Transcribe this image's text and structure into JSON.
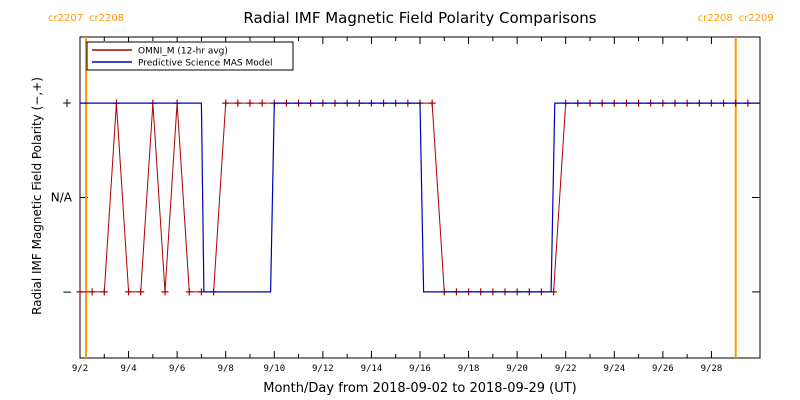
{
  "chart_data": {
    "type": "line",
    "title": "Radial IMF Magnetic Field Polarity Comparisons",
    "xlabel": "Month/Day from 2018-09-02 to 2018-09-29 (UT)",
    "ylabel": "Radial IMF Magnetic Field Polarity (−,+)",
    "x_unit": "days since 2018-09-02 00:00 UT",
    "xlim": [
      0,
      28
    ],
    "ylim": [
      -1.7,
      1.7
    ],
    "x_ticks": [
      0,
      2,
      4,
      6,
      8,
      10,
      12,
      14,
      16,
      18,
      20,
      22,
      24,
      26
    ],
    "x_tick_labels": [
      "9/2",
      "9/4",
      "9/6",
      "9/8",
      "9/10",
      "9/12",
      "9/14",
      "9/16",
      "9/18",
      "9/20",
      "9/22",
      "9/24",
      "9/26",
      "9/28"
    ],
    "y_ticks": [
      1,
      0,
      -1
    ],
    "y_tick_labels": [
      "+",
      "N/A",
      "−"
    ],
    "carrington_markers": [
      {
        "x": 0.25,
        "labels": [
          "cr2207",
          "cr2208"
        ]
      },
      {
        "x": 27.0,
        "labels": [
          "cr2208",
          "cr2209"
        ]
      }
    ],
    "legend_position": "top-left",
    "series": [
      {
        "name": "OMNI_M (12-hr avg)",
        "color": "#aa0000",
        "marker": "plus",
        "x": [
          0.0,
          0.5,
          1.0,
          1.5,
          2.0,
          2.5,
          3.0,
          3.5,
          4.0,
          4.5,
          5.0,
          5.5,
          6.0,
          6.5,
          7.0,
          7.5,
          8.0,
          8.5,
          9.0,
          9.5,
          10.0,
          10.5,
          11.0,
          11.5,
          12.0,
          12.5,
          13.0,
          13.5,
          14.0,
          14.5,
          15.0,
          15.5,
          16.0,
          16.5,
          17.0,
          17.5,
          18.0,
          18.5,
          19.0,
          19.5,
          20.0,
          20.5,
          21.0,
          21.5,
          22.0,
          22.5,
          23.0,
          23.5,
          24.0,
          24.5,
          25.0,
          25.5,
          26.0,
          26.5,
          27.0,
          27.5
        ],
        "values": [
          -1,
          -1,
          -1,
          1,
          -1,
          -1,
          1,
          -1,
          1,
          -1,
          -1,
          -1,
          1,
          1,
          1,
          1,
          1,
          1,
          1,
          1,
          1,
          1,
          1,
          1,
          1,
          1,
          1,
          1,
          1,
          1,
          -1,
          -1,
          -1,
          -1,
          -1,
          -1,
          -1,
          -1,
          -1,
          -1,
          1,
          1,
          1,
          1,
          1,
          1,
          1,
          1,
          1,
          1,
          1,
          1,
          1,
          1,
          1,
          1
        ]
      },
      {
        "name": "Predictive Science MAS Model",
        "color": "#0000bb",
        "x": [
          0.0,
          5.0,
          5.1,
          7.85,
          8.0,
          14.0,
          14.15,
          19.4,
          19.55,
          28.0
        ],
        "values": [
          1,
          1,
          -1,
          -1,
          1,
          1,
          -1,
          -1,
          1,
          1
        ]
      }
    ]
  }
}
